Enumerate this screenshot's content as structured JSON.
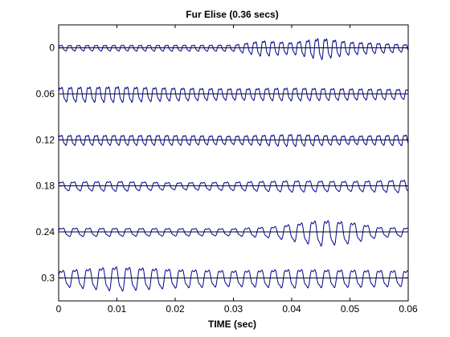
{
  "chart_data": {
    "type": "line",
    "title": "Fur Elise  (0.36 secs)",
    "xlabel": "TIME (sec)",
    "ylabel": "",
    "xlim": [
      0,
      0.06
    ],
    "ylim": [
      -0.03,
      0.33
    ],
    "y_reversed": true,
    "grid": false,
    "x_ticks": [
      "0",
      "0.01",
      "0.02",
      "0.03",
      "0.04",
      "0.05",
      "0.06"
    ],
    "x_tick_values": [
      0,
      0.01,
      0.02,
      0.03,
      0.04,
      0.05,
      0.06
    ],
    "y_ticks": [
      "0",
      "0.06",
      "0.12",
      "0.18",
      "0.24",
      "0.3"
    ],
    "y_tick_values": [
      0,
      0.06,
      0.12,
      0.18,
      0.24,
      0.3
    ],
    "segment_duration": 0.06,
    "series_color": "#00008b",
    "baseline_color": "#000000",
    "series": [
      {
        "offset": 0,
        "freq": 660,
        "amp": [
          [
            0,
            0.2
          ],
          [
            0.03,
            0.22
          ],
          [
            0.035,
            0.55
          ],
          [
            0.04,
            0.4
          ],
          [
            0.045,
            0.75
          ],
          [
            0.05,
            0.45
          ],
          [
            0.06,
            0.25
          ]
        ]
      },
      {
        "offset": 0.06,
        "freq": 622,
        "amp": [
          [
            0,
            0.5
          ],
          [
            0.01,
            0.55
          ],
          [
            0.02,
            0.45
          ],
          [
            0.03,
            0.4
          ],
          [
            0.04,
            0.45
          ],
          [
            0.05,
            0.4
          ],
          [
            0.06,
            0.35
          ]
        ]
      },
      {
        "offset": 0.12,
        "freq": 660,
        "amp": [
          [
            0,
            0.35
          ],
          [
            0.02,
            0.35
          ],
          [
            0.03,
            0.3
          ],
          [
            0.04,
            0.42
          ],
          [
            0.05,
            0.3
          ],
          [
            0.06,
            0.38
          ]
        ]
      },
      {
        "offset": 0.18,
        "freq": 495,
        "amp": [
          [
            0,
            0.3
          ],
          [
            0.01,
            0.35
          ],
          [
            0.02,
            0.25
          ],
          [
            0.03,
            0.3
          ],
          [
            0.04,
            0.4
          ],
          [
            0.05,
            0.35
          ],
          [
            0.06,
            0.45
          ]
        ]
      },
      {
        "offset": 0.24,
        "freq": 440,
        "amp": [
          [
            0,
            0.3
          ],
          [
            0.03,
            0.25
          ],
          [
            0.037,
            0.4
          ],
          [
            0.045,
            0.9
          ],
          [
            0.05,
            0.75
          ],
          [
            0.055,
            0.35
          ],
          [
            0.06,
            0.3
          ]
        ]
      },
      {
        "offset": 0.3,
        "freq": 440,
        "amp": [
          [
            0,
            0.55
          ],
          [
            0.01,
            0.85
          ],
          [
            0.02,
            0.65
          ],
          [
            0.03,
            0.55
          ],
          [
            0.04,
            0.65
          ],
          [
            0.05,
            0.6
          ],
          [
            0.06,
            0.55
          ]
        ]
      }
    ]
  }
}
